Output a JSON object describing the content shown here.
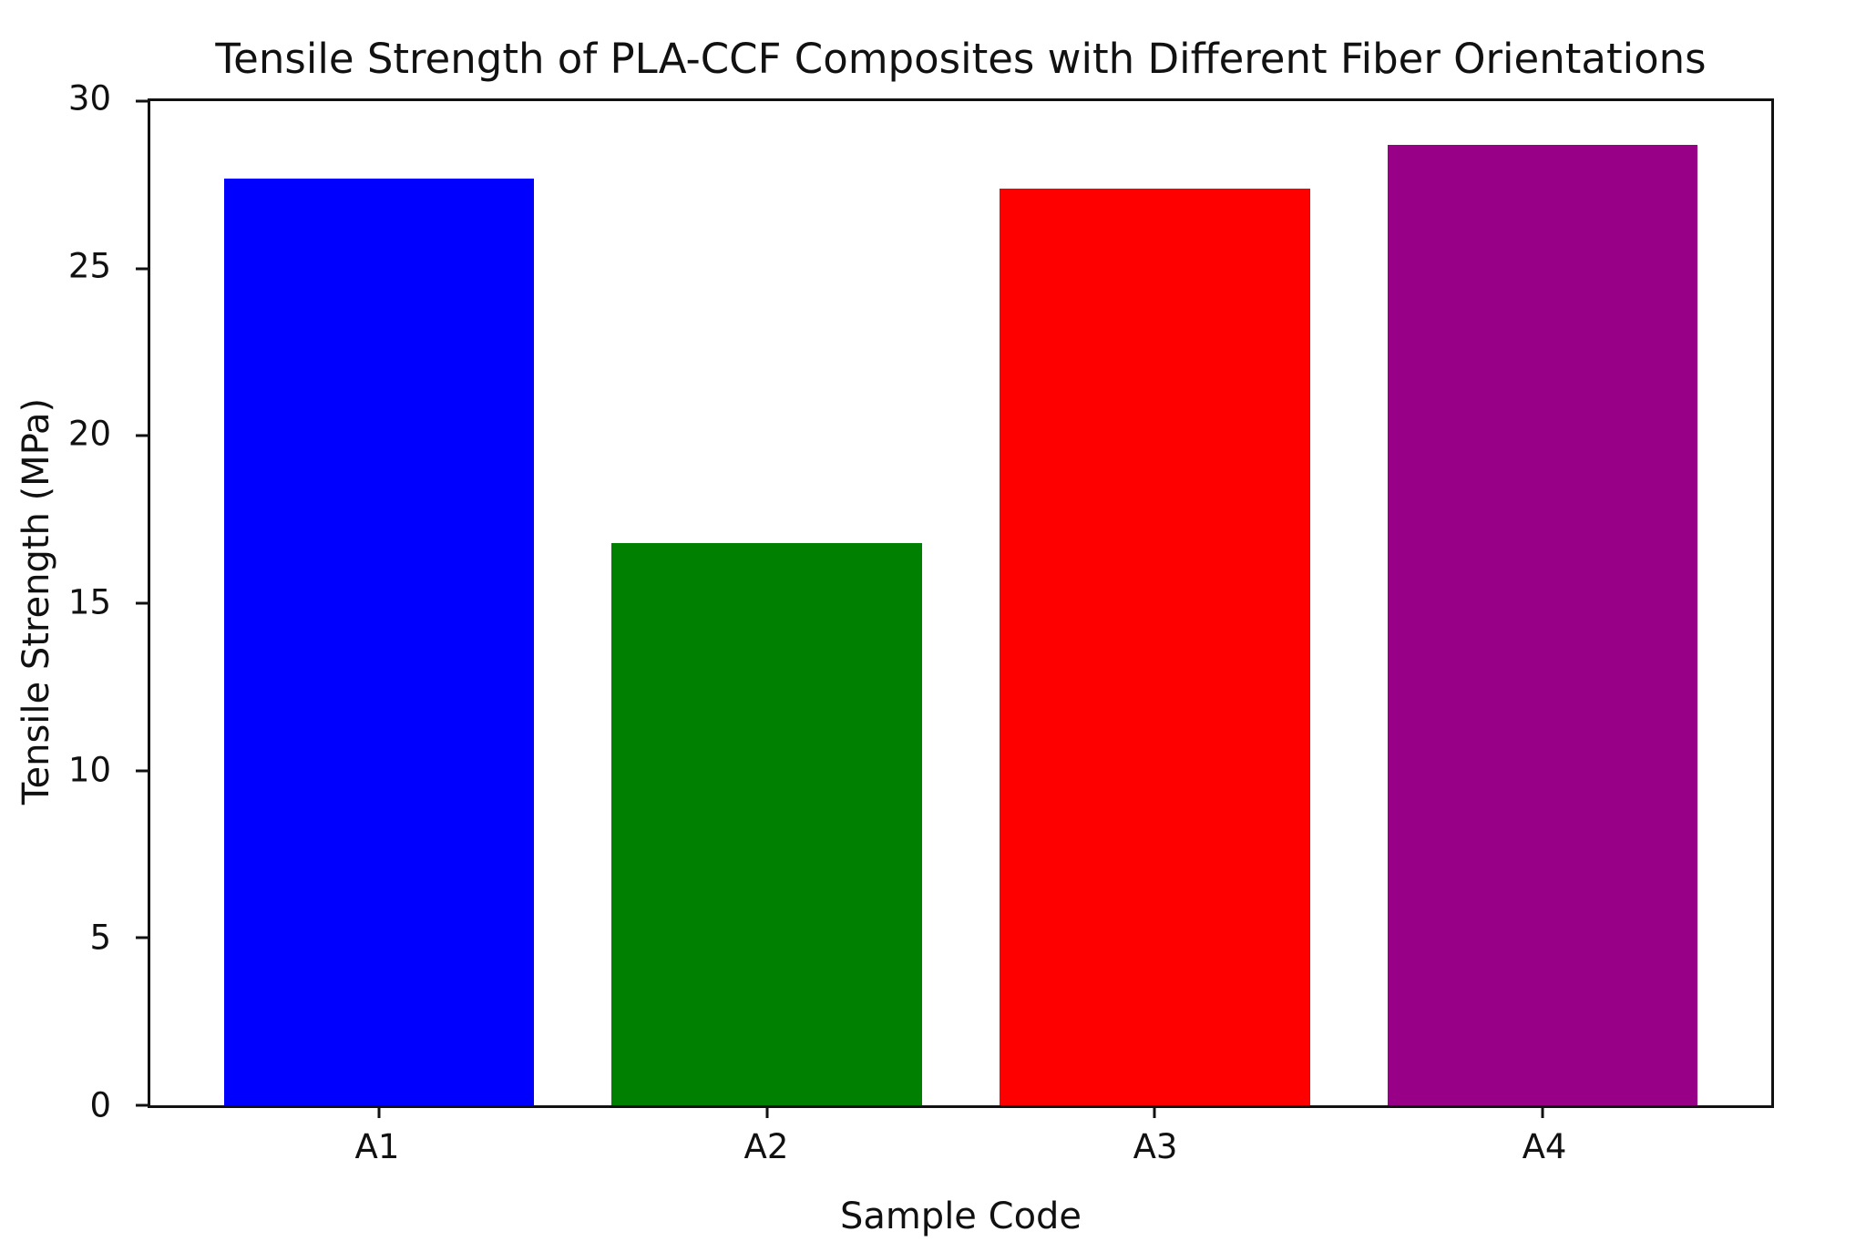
{
  "chart_data": {
    "type": "bar",
    "title": "Tensile Strength of PLA-CCF Composites with Different Fiber Orientations",
    "xlabel": "Sample Code",
    "ylabel": "Tensile Strength (MPa)",
    "categories": [
      "A1",
      "A2",
      "A3",
      "A4"
    ],
    "values": [
      27.7,
      16.8,
      27.4,
      28.7
    ],
    "bar_colors": [
      "#0000ff",
      "#008000",
      "#ff0000",
      "#970087"
    ],
    "ylim": [
      0,
      30
    ],
    "yticks": [
      0,
      5,
      10,
      15,
      20,
      25,
      30
    ],
    "grid": false,
    "legend": "none",
    "bar_width_fraction": 0.8,
    "axis_color": "#111111",
    "background_color": "#ffffff"
  }
}
